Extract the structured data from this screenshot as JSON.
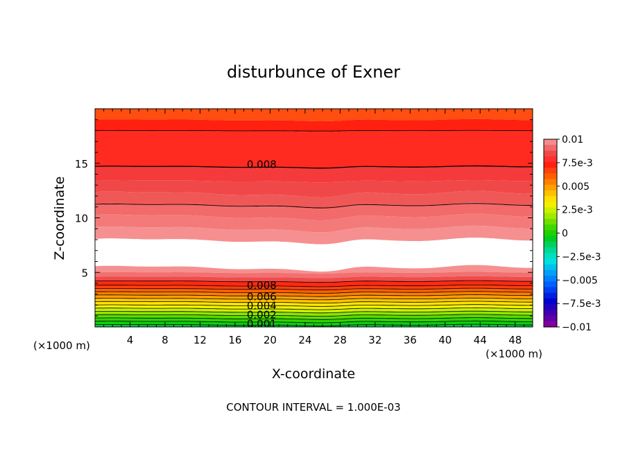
{
  "chart_data": {
    "type": "heatmap",
    "title": "disturbunce of Exner",
    "xlabel": "X-coordinate",
    "ylabel": "Z-coordinate",
    "x_unit_left": "(×1000 m)",
    "x_unit_right": "(×1000 m)",
    "footer": "CONTOUR INTERVAL = 1.000E-03",
    "xlim": [
      0,
      50
    ],
    "ylim": [
      0,
      20
    ],
    "x_ticks": [
      4,
      8,
      12,
      16,
      20,
      24,
      28,
      32,
      36,
      40,
      44,
      48
    ],
    "y_ticks": [
      5,
      10,
      15
    ],
    "contour_interval": 0.001,
    "contour_labels": [
      {
        "text": "0.008",
        "x": 17.3,
        "z": 14.9
      },
      {
        "text": "0.008",
        "x": 17.3,
        "z": 3.8
      },
      {
        "text": "0.006",
        "x": 17.3,
        "z": 2.75
      },
      {
        "text": "0.004",
        "x": 17.3,
        "z": 1.95
      },
      {
        "text": "0.002",
        "x": 17.3,
        "z": 1.1
      },
      {
        "text": "0.001",
        "x": 17.3,
        "z": 0.3
      }
    ],
    "colorbar": {
      "ticks": [
        "0.01",
        "7.5e-3",
        "0.005",
        "2.5e-3",
        "0",
        "−2.5e-3",
        "−0.005",
        "−7.5e-3",
        "−0.01"
      ],
      "levels": [
        {
          "value": 0.0095,
          "color": "#f48c8c"
        },
        {
          "value": 0.009,
          "color": "#f06a6a"
        },
        {
          "value": 0.0085,
          "color": "#ee4a4a"
        },
        {
          "value": 0.008,
          "color": "#ff3030"
        },
        {
          "value": 0.0075,
          "color": "#ff2010"
        },
        {
          "value": 0.007,
          "color": "#ff4010"
        },
        {
          "value": 0.0065,
          "color": "#ff6000"
        },
        {
          "value": 0.006,
          "color": "#ff8000"
        },
        {
          "value": 0.0055,
          "color": "#ffa000"
        },
        {
          "value": 0.005,
          "color": "#ffc000"
        },
        {
          "value": 0.0045,
          "color": "#ffe000"
        },
        {
          "value": 0.004,
          "color": "#f0f000"
        },
        {
          "value": 0.0035,
          "color": "#c8f000"
        },
        {
          "value": 0.003,
          "color": "#a0ea00"
        },
        {
          "value": 0.0025,
          "color": "#70e000"
        },
        {
          "value": 0.002,
          "color": "#40d800"
        },
        {
          "value": 0.0015,
          "color": "#20d000"
        },
        {
          "value": 0.001,
          "color": "#00cc20"
        },
        {
          "value": 0.0005,
          "color": "#00d060"
        },
        {
          "value": 0.0,
          "color": "#00d890"
        },
        {
          "value": -0.0005,
          "color": "#00e0c0"
        },
        {
          "value": -0.001,
          "color": "#00e0e0"
        },
        {
          "value": -0.0015,
          "color": "#00c0f0"
        },
        {
          "value": -0.002,
          "color": "#00a0f8"
        },
        {
          "value": -0.0025,
          "color": "#0080ff"
        },
        {
          "value": -0.003,
          "color": "#0060ff"
        },
        {
          "value": -0.0035,
          "color": "#0040f0"
        },
        {
          "value": -0.004,
          "color": "#0020e0"
        },
        {
          "value": -0.0045,
          "color": "#0000d0"
        },
        {
          "value": -0.005,
          "color": "#2000c0"
        },
        {
          "value": -0.0055,
          "color": "#4000b0"
        },
        {
          "value": -0.006,
          "color": "#6000a8"
        },
        {
          "value": -0.0065,
          "color": "#8000a0"
        }
      ]
    },
    "bands_upper": [
      {
        "z_bottom": 19.0,
        "z_top": 20.0,
        "color": "#ff4e10"
      },
      {
        "z_bottom": 18.0,
        "z_top": 19.0,
        "color": "#ff2010"
      },
      {
        "z_bottom": 14.7,
        "z_top": 18.0,
        "color": "#ff2a20"
      },
      {
        "z_bottom": 13.4,
        "z_top": 14.7,
        "color": "#f43a3a"
      },
      {
        "z_bottom": 12.3,
        "z_top": 13.4,
        "color": "#f04848"
      },
      {
        "z_bottom": 11.2,
        "z_top": 12.3,
        "color": "#f05858"
      },
      {
        "z_bottom": 10.2,
        "z_top": 11.2,
        "color": "#f26a6a"
      },
      {
        "z_bottom": 9.1,
        "z_top": 10.2,
        "color": "#f47a7a"
      },
      {
        "z_bottom": 8.0,
        "z_top": 9.1,
        "color": "#f69090"
      },
      {
        "z_bottom": 5.5,
        "z_top": 8.0,
        "color": "#ffffff"
      }
    ],
    "bands_lower": [
      {
        "z_bottom": 5.0,
        "z_top": 5.5,
        "color": "#f69090"
      },
      {
        "z_bottom": 4.6,
        "z_top": 5.0,
        "color": "#f27070"
      },
      {
        "z_bottom": 4.2,
        "z_top": 4.6,
        "color": "#ee4c4c"
      },
      {
        "z_bottom": 3.8,
        "z_top": 4.2,
        "color": "#ff2a10"
      },
      {
        "z_bottom": 3.5,
        "z_top": 3.8,
        "color": "#ff4010"
      },
      {
        "z_bottom": 3.2,
        "z_top": 3.5,
        "color": "#ff6000"
      },
      {
        "z_bottom": 2.9,
        "z_top": 3.2,
        "color": "#ff8000"
      },
      {
        "z_bottom": 2.6,
        "z_top": 2.9,
        "color": "#ffa000"
      },
      {
        "z_bottom": 2.3,
        "z_top": 2.6,
        "color": "#ffc400"
      },
      {
        "z_bottom": 2.0,
        "z_top": 2.3,
        "color": "#ffe400"
      },
      {
        "z_bottom": 1.7,
        "z_top": 2.0,
        "color": "#f0f000"
      },
      {
        "z_bottom": 1.4,
        "z_top": 1.7,
        "color": "#c8f000"
      },
      {
        "z_bottom": 1.1,
        "z_top": 1.4,
        "color": "#90e600"
      },
      {
        "z_bottom": 0.8,
        "z_top": 1.1,
        "color": "#5adc00"
      },
      {
        "z_bottom": 0.5,
        "z_top": 0.8,
        "color": "#30d400"
      },
      {
        "z_bottom": 0.2,
        "z_top": 0.5,
        "color": "#10cc10"
      },
      {
        "z_bottom": 0.0,
        "z_top": 0.2,
        "color": "#00c840"
      }
    ],
    "contour_lines_upper": [
      {
        "z": 18.0,
        "amp": 0.1
      },
      {
        "z": 14.7,
        "amp": 0.3
      },
      {
        "z": 11.2,
        "amp": 0.6
      }
    ],
    "contour_lines_lower": [
      4.2,
      3.8,
      3.5,
      3.2,
      2.9,
      2.6,
      2.3,
      2.0,
      1.7,
      1.4,
      1.1,
      0.8,
      0.5,
      0.2
    ]
  }
}
